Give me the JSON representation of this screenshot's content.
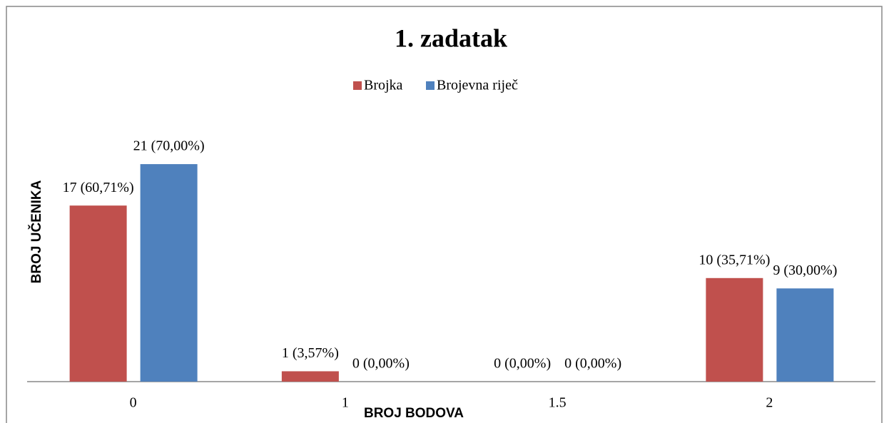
{
  "chart_data": {
    "type": "bar",
    "title": "1. zadatak",
    "x_label": "BROJ BODOVA",
    "y_label": "BROJ UČENIKA",
    "categories": [
      "0",
      "1",
      "1.5",
      "2"
    ],
    "series": [
      {
        "name": "Brojka",
        "color": "#c0504d",
        "values": [
          17,
          1,
          0,
          10
        ],
        "value_labels": [
          "17 (60,71%)",
          "1 (3,57%)",
          "0 (0,00%)",
          "10 (35,71%)"
        ]
      },
      {
        "name": "Brojevna riječ",
        "color": "#4f81bd",
        "values": [
          21,
          0,
          0,
          9
        ],
        "value_labels": [
          "21 (70,00%)",
          "0 (0,00%)",
          "0 (0,00%)",
          "9 (30,00%)"
        ]
      }
    ],
    "ylim": [
      0,
      25
    ],
    "legend": "top"
  }
}
